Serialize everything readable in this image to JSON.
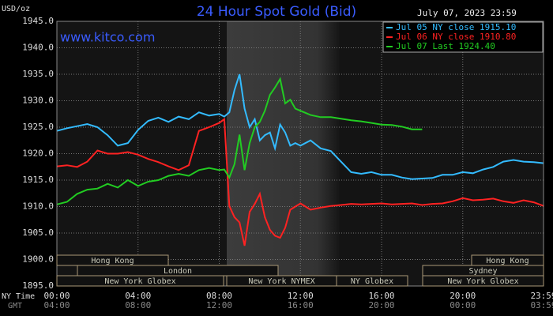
{
  "chart_data": {
    "type": "line",
    "title": "24 Hour Spot Gold (Bid)",
    "date": "July 07, 2023 23:59",
    "unit": "USD/oz",
    "website": "www.kitco.com",
    "x_row_labels": [
      "NY Time",
      "GMT"
    ],
    "x": [
      0,
      0.5,
      1,
      1.5,
      2,
      2.5,
      3,
      3.5,
      4,
      4.5,
      5,
      5.5,
      6,
      6.5,
      7,
      7.5,
      8,
      8.25,
      8.5,
      8.75,
      9,
      9.25,
      9.5,
      9.75,
      10,
      10.25,
      10.5,
      10.75,
      11,
      11.25,
      11.5,
      11.75,
      12,
      12.5,
      13,
      13.5,
      14,
      14.5,
      15,
      15.5,
      16,
      16.5,
      17,
      17.5,
      18,
      18.5,
      19,
      19.5,
      20,
      20.5,
      21,
      21.5,
      22,
      22.5,
      23,
      23.5,
      24
    ],
    "series": [
      {
        "name": "Jul 05 NY close 1915.10",
        "color": "#33bbff",
        "values": [
          1924.3,
          1924.8,
          1925.2,
          1925.6,
          1925.0,
          1923.5,
          1921.5,
          1922.0,
          1924.5,
          1926.2,
          1926.8,
          1926.0,
          1927.0,
          1926.5,
          1927.8,
          1927.2,
          1927.5,
          1927.0,
          1927.8,
          1932.0,
          1935.0,
          1928.5,
          1925.0,
          1926.5,
          1922.5,
          1923.5,
          1924.0,
          1921.0,
          1925.5,
          1924.0,
          1921.5,
          1922.0,
          1921.5,
          1922.5,
          1921.0,
          1920.5,
          1918.5,
          1916.5,
          1916.2,
          1916.5,
          1916.0,
          1916.0,
          1915.5,
          1915.2,
          1915.3,
          1915.4,
          1916.0,
          1916.0,
          1916.5,
          1916.3,
          1917.0,
          1917.5,
          1918.5,
          1918.8,
          1918.5,
          1918.4,
          1918.2
        ]
      },
      {
        "name": "Jul 06 NY close 1910.80",
        "color": "#ff2222",
        "values": [
          1917.6,
          1917.8,
          1917.5,
          1918.5,
          1920.6,
          1920.0,
          1920.0,
          1920.3,
          1919.8,
          1919.0,
          1918.4,
          1917.6,
          1916.9,
          1917.8,
          1924.3,
          1925.0,
          1925.8,
          1926.5,
          1910.1,
          1908.0,
          1907.0,
          1902.6,
          1909.0,
          1910.5,
          1912.4,
          1908.0,
          1905.6,
          1904.5,
          1904.1,
          1906.0,
          1909.4,
          1910.0,
          1910.6,
          1909.4,
          1909.8,
          1910.1,
          1910.3,
          1910.5,
          1910.4,
          1910.5,
          1910.6,
          1910.4,
          1910.5,
          1910.6,
          1910.3,
          1910.5,
          1910.6,
          1911.0,
          1911.6,
          1911.2,
          1911.3,
          1911.5,
          1911.0,
          1910.7,
          1911.2,
          1910.8,
          1910.1
        ]
      },
      {
        "name": "Jul 07 Last 1924.40",
        "color": "#22cc22",
        "values": [
          1910.4,
          1910.9,
          1912.4,
          1913.2,
          1913.4,
          1914.3,
          1913.6,
          1915.0,
          1913.9,
          1914.7,
          1915.0,
          1915.8,
          1916.2,
          1915.8,
          1916.9,
          1917.3,
          1916.9,
          1917.0,
          1915.5,
          1918.0,
          1923.6,
          1916.9,
          1922.0,
          1925.0,
          1926.0,
          1928.1,
          1931.1,
          1932.5,
          1934.1,
          1929.5,
          1930.2,
          1928.5,
          1928.1,
          1927.3,
          1926.9,
          1926.9,
          1926.6,
          1926.3,
          1926.1,
          1925.8,
          1925.5,
          1925.4,
          1925.1,
          1924.6,
          1924.6,
          null,
          null,
          null,
          null,
          null,
          null,
          null,
          null,
          null,
          null,
          null,
          null
        ]
      }
    ],
    "xlim": [
      0,
      23.98
    ],
    "ylim": [
      1895,
      1945
    ],
    "xticks": [
      {
        "value": 0,
        "label": "00:00"
      },
      {
        "value": 4,
        "label": "04:00"
      },
      {
        "value": 8,
        "label": "08:00"
      },
      {
        "value": 12,
        "label": "12:00"
      },
      {
        "value": 16,
        "label": "16:00"
      },
      {
        "value": 20,
        "label": "20:00"
      },
      {
        "value": 23.98,
        "label": "23:59"
      }
    ],
    "gmt_ticks": [
      {
        "value": 0,
        "label": "04:00"
      },
      {
        "value": 4,
        "label": "08:00"
      },
      {
        "value": 8,
        "label": "12:00"
      },
      {
        "value": 12,
        "label": "16:00"
      },
      {
        "value": 16,
        "label": "20:00"
      },
      {
        "value": 20,
        "label": "00:00"
      },
      {
        "value": 23.98,
        "label": "03:59"
      }
    ],
    "yticks": [
      {
        "value": 1945,
        "label": "1945.0"
      },
      {
        "value": 1940,
        "label": "1940.0"
      },
      {
        "value": 1935,
        "label": "1935.0"
      },
      {
        "value": 1930,
        "label": "1930.0"
      },
      {
        "value": 1925,
        "label": "1925.0"
      },
      {
        "value": 1920,
        "label": "1920.0"
      },
      {
        "value": 1915,
        "label": "1915.0"
      },
      {
        "value": 1910,
        "label": "1910.0"
      },
      {
        "value": 1905,
        "label": "1905.0"
      },
      {
        "value": 1900,
        "label": "1900.0"
      },
      {
        "value": 1895,
        "label": "1895.0"
      }
    ],
    "grid": true,
    "legend": "top-right",
    "sessions": [
      "Hong Kong",
      "London",
      "New York Globex",
      "New York NYMEX",
      "NY Globex",
      "Sydney",
      "Hong Kong",
      "New York Globex"
    ]
  }
}
